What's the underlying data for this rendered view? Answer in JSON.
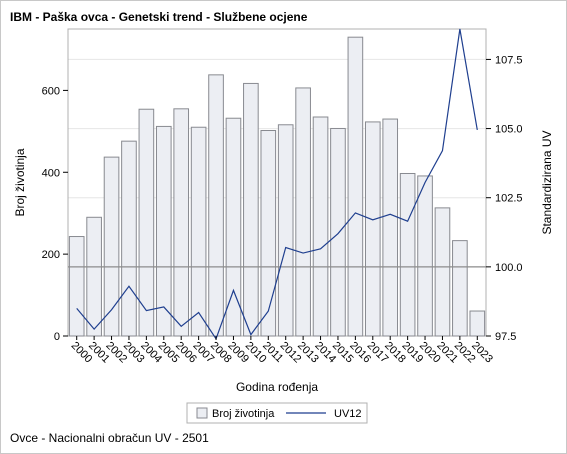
{
  "chart_title": "IBM - Paška ovca - Genetski trend - Službene ocjene",
  "footnote": "Ovce - Nacionalni obračun UV - 2501",
  "colors": {
    "bar_fill": "#eceef3",
    "bar_stroke": "#888a90",
    "line": "#1f3f8f",
    "reference_line": "#8c8c8c",
    "grid": "#e6e6e6"
  },
  "chart_data": {
    "type": "bar",
    "x": [
      "2000",
      "2001",
      "2002",
      "2003",
      "2004",
      "2005",
      "2006",
      "2007",
      "2008",
      "2009",
      "2010",
      "2011",
      "2012",
      "2013",
      "2014",
      "2015",
      "2016",
      "2017",
      "2018",
      "2019",
      "2020",
      "2021",
      "2022",
      "2023"
    ],
    "series": [
      {
        "name": "Broj životinja",
        "type": "bar",
        "axis": "left",
        "values": [
          243,
          290,
          437,
          476,
          554,
          512,
          555,
          510,
          638,
          532,
          617,
          502,
          516,
          606,
          535,
          507,
          730,
          523,
          530,
          397,
          391,
          313,
          233,
          61
        ]
      },
      {
        "name": "UV12",
        "type": "line",
        "axis": "right",
        "values": [
          98.5,
          97.75,
          98.45,
          99.3,
          98.42,
          98.55,
          97.85,
          98.35,
          97.4,
          99.15,
          97.55,
          98.4,
          100.7,
          100.5,
          100.65,
          101.2,
          101.95,
          101.7,
          101.9,
          101.65,
          103.05,
          104.2,
          108.6,
          104.95
        ]
      }
    ],
    "xlabel": "Godina rođenja",
    "ylabel": "Broj životinja",
    "y2label": "Standardizirana UV",
    "ylim": [
      0,
      750
    ],
    "y2lim": [
      97.5,
      108.6
    ],
    "yticks": [
      "0",
      "200",
      "400",
      "600"
    ],
    "y2ticks": [
      "97.5",
      "100.0",
      "102.5",
      "105.0",
      "107.5"
    ],
    "reference_line": 100.0,
    "grid": true,
    "legend": {
      "position": "bottom",
      "items": [
        "Broj životinja",
        "UV12"
      ]
    }
  }
}
